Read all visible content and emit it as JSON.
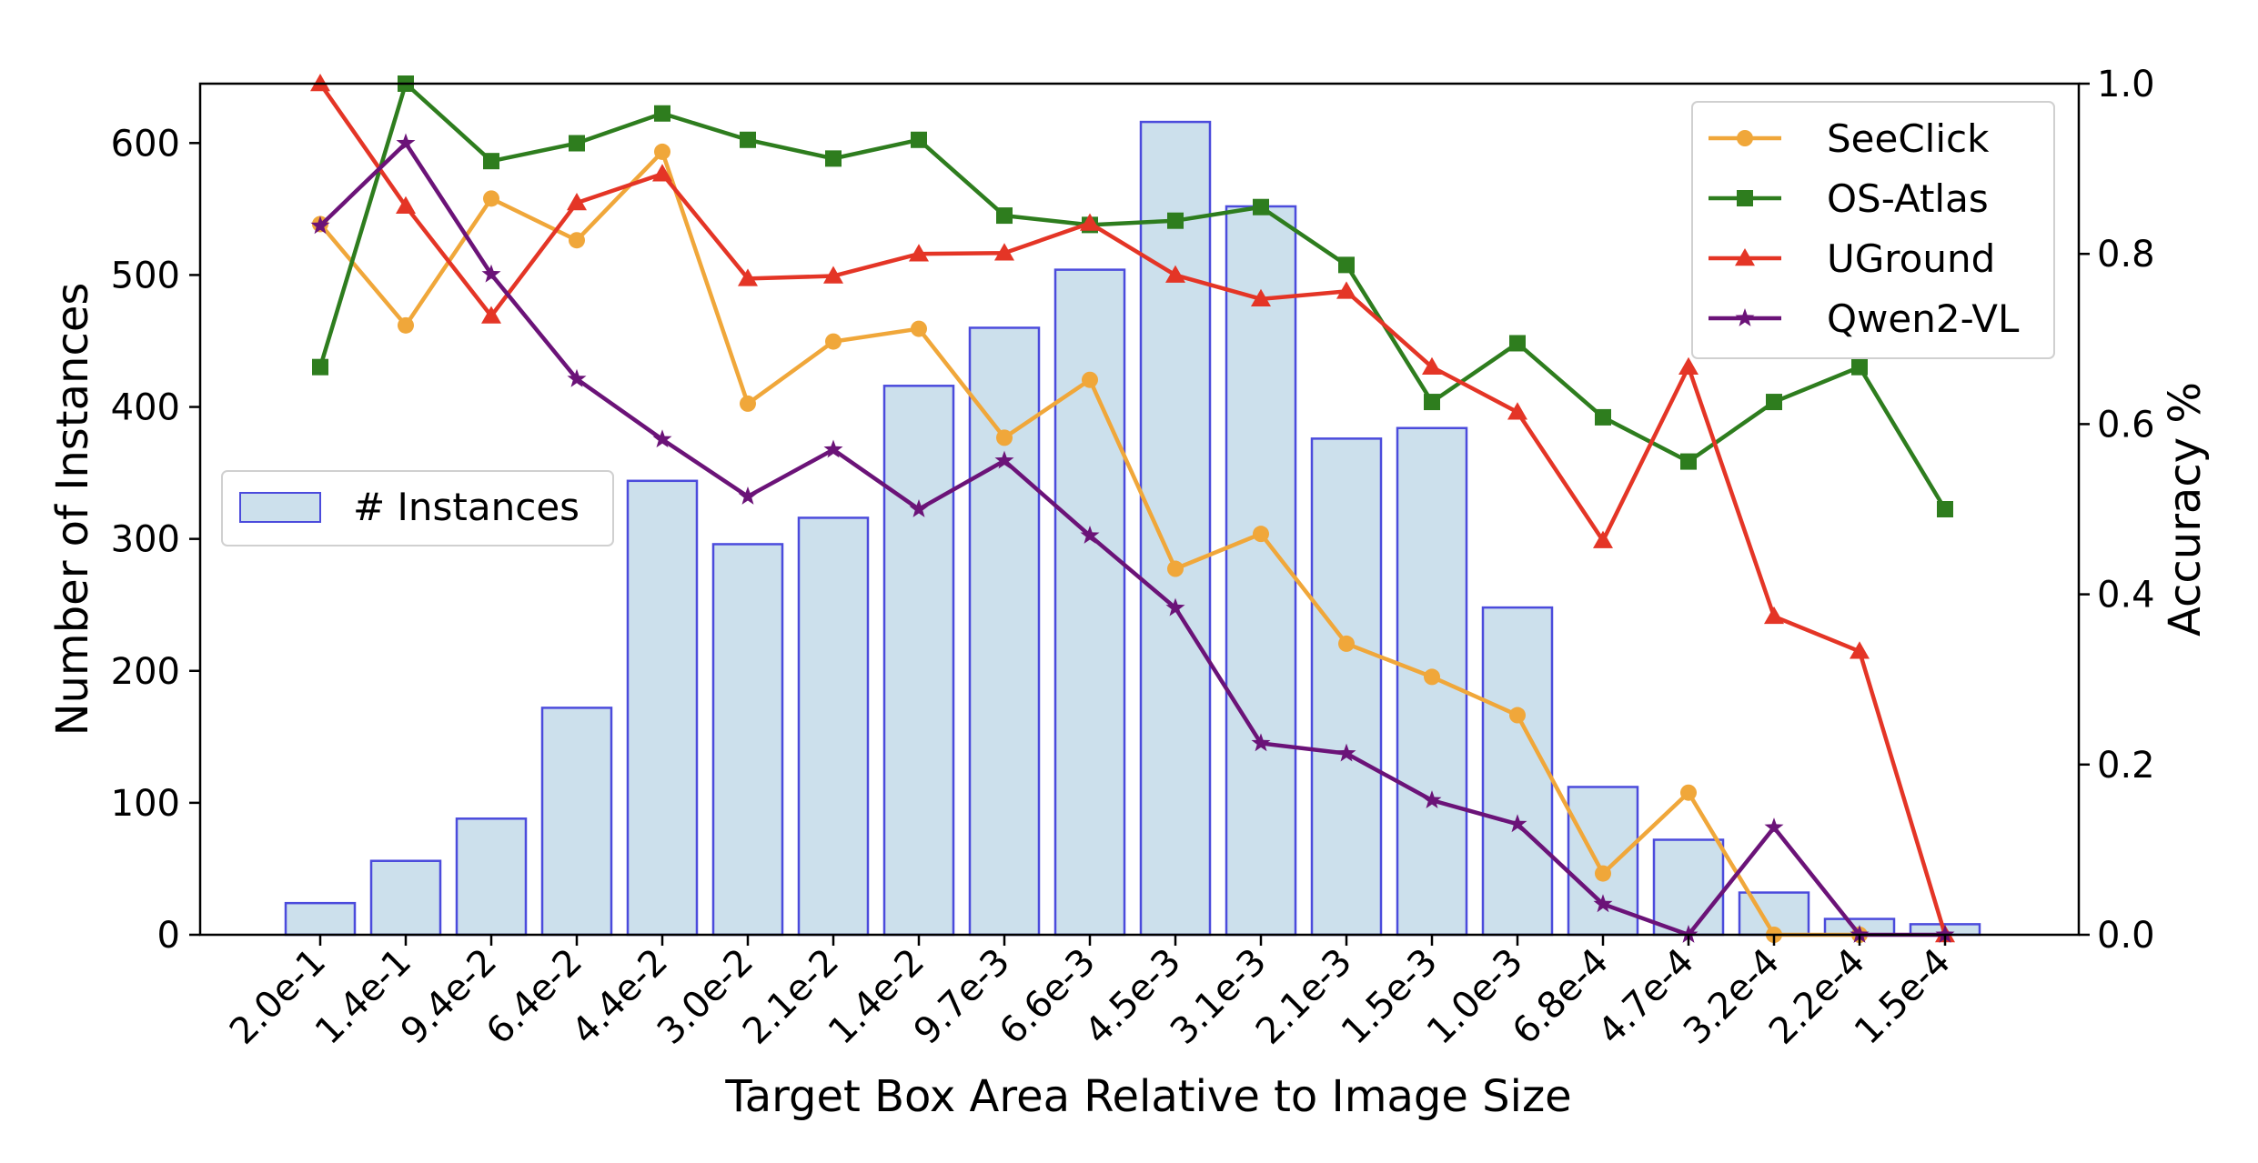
{
  "chart_data": {
    "type": "bar",
    "categories": [
      "2.0e-1",
      "1.4e-1",
      "9.4e-2",
      "6.4e-2",
      "4.4e-2",
      "3.0e-2",
      "2.1e-2",
      "1.4e-2",
      "9.7e-3",
      "6.6e-3",
      "4.5e-3",
      "3.1e-3",
      "2.1e-3",
      "1.5e-3",
      "1.0e-3",
      "6.8e-4",
      "4.7e-4",
      "3.2e-4",
      "2.2e-4",
      "1.5e-4"
    ],
    "xlabel": "Target Box Area Relative to Image Size",
    "ylabel": "Number of Instances",
    "y2label": "Accuracy %",
    "ylim": [
      0,
      645
    ],
    "y2lim": [
      0,
      1.0
    ],
    "yticks": [
      "0",
      "100",
      "200",
      "300",
      "400",
      "500",
      "600"
    ],
    "y2ticks": [
      "0.0",
      "0.2",
      "0.4",
      "0.6",
      "0.8",
      "1.0"
    ],
    "grid": false,
    "bars": {
      "name": "# Instances",
      "values": [
        24,
        56,
        88,
        172,
        344,
        296,
        316,
        416,
        460,
        504,
        616,
        552,
        376,
        384,
        248,
        112,
        72,
        32,
        12,
        8
      ],
      "fill": "#cce0ec",
      "edge": "#4b4bdc",
      "legend_position": "center-left"
    },
    "series": [
      {
        "name": "SeeClick",
        "color": "#f0a73a",
        "marker": "circle",
        "values": [
          0.835,
          0.716,
          0.865,
          0.816,
          0.92,
          0.624,
          0.697,
          0.712,
          0.584,
          0.652,
          0.43,
          0.471,
          0.342,
          0.303,
          0.258,
          0.072,
          0.167,
          0.0,
          0.0,
          null
        ]
      },
      {
        "name": "OS-Atlas",
        "color": "#2e7d1e",
        "marker": "square",
        "values": [
          0.667,
          1.0,
          0.909,
          0.93,
          0.965,
          0.934,
          0.912,
          0.934,
          0.845,
          0.834,
          0.839,
          0.855,
          0.787,
          0.626,
          0.695,
          0.608,
          0.556,
          0.626,
          0.667,
          0.5
        ]
      },
      {
        "name": "UGround",
        "color": "#e43526",
        "marker": "triangle",
        "values": [
          1.0,
          0.856,
          0.727,
          0.86,
          0.894,
          0.771,
          0.774,
          0.8,
          0.801,
          0.836,
          0.775,
          0.747,
          0.756,
          0.667,
          0.614,
          0.463,
          0.667,
          0.374,
          0.333,
          0.0
        ]
      },
      {
        "name": "Qwen2-VL",
        "color": "#6b1378",
        "marker": "star",
        "values": [
          0.833,
          0.93,
          0.776,
          0.653,
          0.582,
          0.515,
          0.57,
          0.5,
          0.557,
          0.469,
          0.384,
          0.225,
          0.213,
          0.158,
          0.13,
          0.036,
          0.0,
          0.126,
          0.0,
          0.0
        ]
      }
    ],
    "legend_position": "top-right"
  }
}
